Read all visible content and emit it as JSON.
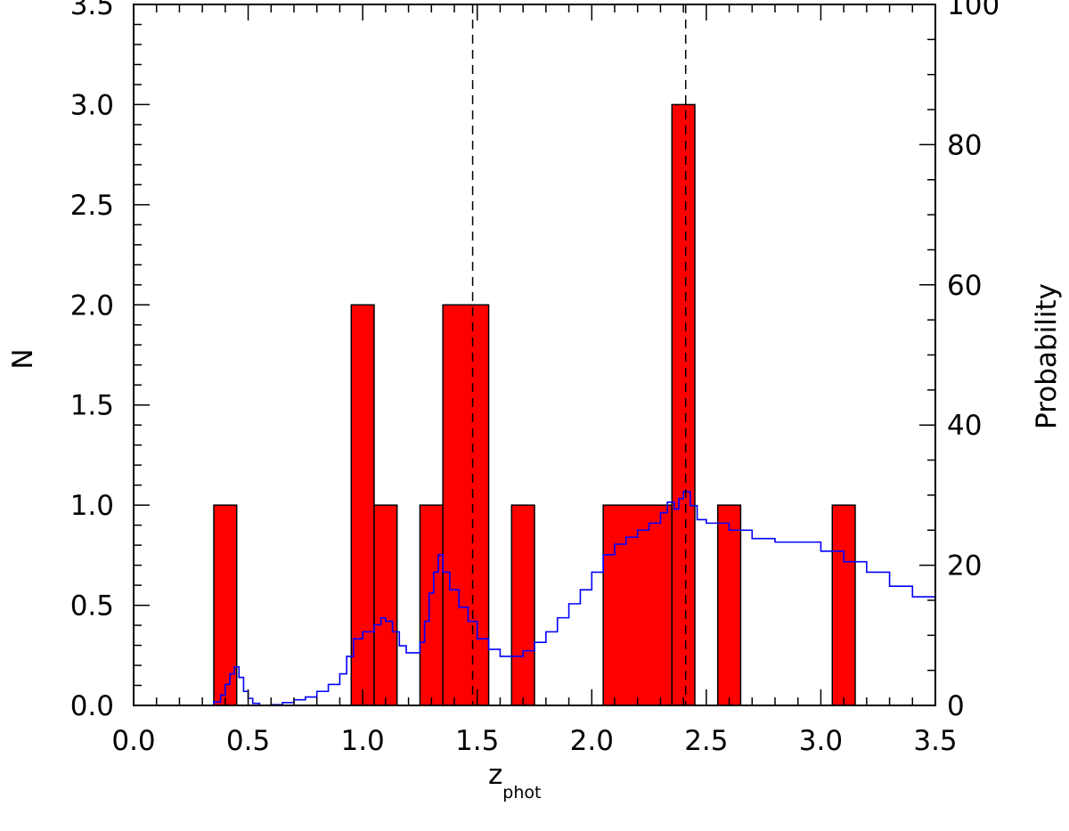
{
  "chart_data": {
    "type": "bar",
    "title": "",
    "xlabel": "z",
    "xlabel_subscript": "phot",
    "ylabel": "N",
    "y2label": "Probability",
    "xlim": [
      0.0,
      3.5
    ],
    "ylim": [
      0.0,
      3.5
    ],
    "y2lim": [
      0,
      100
    ],
    "x_ticks": [
      "0.0",
      "0.5",
      "1.0",
      "1.5",
      "2.0",
      "2.5",
      "3.0",
      "3.5"
    ],
    "y_ticks": [
      "0.0",
      "0.5",
      "1.0",
      "1.5",
      "2.0",
      "2.5",
      "3.0",
      "3.5"
    ],
    "y2_ticks": [
      "0",
      "20",
      "40",
      "60",
      "80",
      "100"
    ],
    "grid": false,
    "histogram": {
      "name": "N",
      "color": "#ff0000",
      "bins": [
        {
          "x0": 0.35,
          "x1": 0.45,
          "value": 1
        },
        {
          "x0": 0.95,
          "x1": 1.05,
          "value": 2
        },
        {
          "x0": 1.05,
          "x1": 1.15,
          "value": 1
        },
        {
          "x0": 1.25,
          "x1": 1.35,
          "value": 1
        },
        {
          "x0": 1.35,
          "x1": 1.55,
          "value": 2
        },
        {
          "x0": 1.65,
          "x1": 1.75,
          "value": 1
        },
        {
          "x0": 2.05,
          "x1": 2.35,
          "value": 1
        },
        {
          "x0": 2.35,
          "x1": 2.45,
          "value": 3
        },
        {
          "x0": 2.55,
          "x1": 2.65,
          "value": 1
        },
        {
          "x0": 3.05,
          "x1": 3.15,
          "value": 1
        }
      ]
    },
    "probability_curve": {
      "name": "Probability",
      "color": "#0000ff",
      "axis": "right",
      "points": [
        [
          0.0,
          0.0
        ],
        [
          0.32,
          0.0
        ],
        [
          0.35,
          0.5
        ],
        [
          0.38,
          1.5
        ],
        [
          0.4,
          3.0
        ],
        [
          0.42,
          4.5
        ],
        [
          0.44,
          5.5
        ],
        [
          0.46,
          4.0
        ],
        [
          0.48,
          2.0
        ],
        [
          0.5,
          1.0
        ],
        [
          0.52,
          0.3
        ],
        [
          0.55,
          0.0
        ],
        [
          0.6,
          0.1
        ],
        [
          0.65,
          0.4
        ],
        [
          0.7,
          0.8
        ],
        [
          0.75,
          1.2
        ],
        [
          0.8,
          2.0
        ],
        [
          0.85,
          3.0
        ],
        [
          0.9,
          4.5
        ],
        [
          0.93,
          7.0
        ],
        [
          0.96,
          9.5
        ],
        [
          1.0,
          10.5
        ],
        [
          1.05,
          11.5
        ],
        [
          1.08,
          12.5
        ],
        [
          1.1,
          12.0
        ],
        [
          1.13,
          10.5
        ],
        [
          1.16,
          8.5
        ],
        [
          1.19,
          7.5
        ],
        [
          1.22,
          7.5
        ],
        [
          1.25,
          9.0
        ],
        [
          1.27,
          12.0
        ],
        [
          1.29,
          16.0
        ],
        [
          1.31,
          19.0
        ],
        [
          1.33,
          21.5
        ],
        [
          1.35,
          19.0
        ],
        [
          1.38,
          16.5
        ],
        [
          1.42,
          14.0
        ],
        [
          1.46,
          12.0
        ],
        [
          1.5,
          9.5
        ],
        [
          1.55,
          8.0
        ],
        [
          1.6,
          7.0
        ],
        [
          1.65,
          7.0
        ],
        [
          1.7,
          7.8
        ],
        [
          1.75,
          9.0
        ],
        [
          1.8,
          10.5
        ],
        [
          1.85,
          12.5
        ],
        [
          1.9,
          14.5
        ],
        [
          1.95,
          16.5
        ],
        [
          2.0,
          19.0
        ],
        [
          2.05,
          21.5
        ],
        [
          2.1,
          23.0
        ],
        [
          2.15,
          24.0
        ],
        [
          2.2,
          25.0
        ],
        [
          2.25,
          26.0
        ],
        [
          2.3,
          27.5
        ],
        [
          2.33,
          29.0
        ],
        [
          2.36,
          28.0
        ],
        [
          2.38,
          29.5
        ],
        [
          2.4,
          30.5
        ],
        [
          2.43,
          28.5
        ],
        [
          2.46,
          26.5
        ],
        [
          2.5,
          26.0
        ],
        [
          2.6,
          25.0
        ],
        [
          2.7,
          23.8
        ],
        [
          2.8,
          23.3
        ],
        [
          2.9,
          23.3
        ],
        [
          3.0,
          22.0
        ],
        [
          3.1,
          20.5
        ],
        [
          3.2,
          19.0
        ],
        [
          3.3,
          17.0
        ],
        [
          3.4,
          15.5
        ],
        [
          3.5,
          14.0
        ]
      ]
    },
    "reference_lines": [
      {
        "x": 1.48,
        "style": "dashed"
      },
      {
        "x": 2.41,
        "style": "dashed"
      }
    ]
  }
}
